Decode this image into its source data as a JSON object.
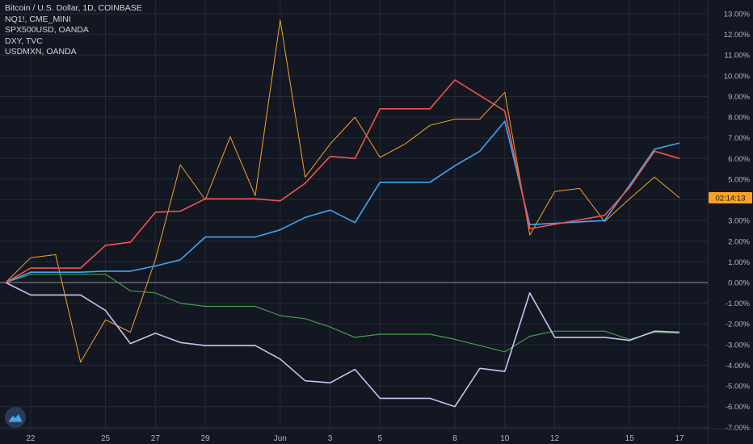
{
  "legend": {
    "line1": "Bitcoin / U.S. Dollar, 1D, COINBASE",
    "line2": "NQ1!, CME_MINI",
    "line3": "SPX500USD, OANDA",
    "line4": "DXY, TVC",
    "line5": "USDMXN, OANDA"
  },
  "price_tag": "02:14:13",
  "colors": {
    "background": "#131722",
    "grid": "#262b37",
    "axis_text": "#b2b5be",
    "btc": "#f7a325",
    "nq": "#f0544f",
    "spx": "#42a5f5",
    "dxy": "#43a047",
    "usdmxn": "#c5c3f0",
    "zero_line": "#8f939c",
    "price_tag_bg": "#f7a325"
  },
  "chart_data": {
    "type": "line",
    "x_ticks": [
      "22",
      "25",
      "27",
      "29",
      "Jun",
      "3",
      "5",
      "8",
      "10",
      "12",
      "15",
      "17"
    ],
    "y_ticks": [
      "13.00%",
      "12.00%",
      "11.00%",
      "10.00%",
      "9.00%",
      "8.00%",
      "7.00%",
      "6.00%",
      "5.00%",
      "4.00%",
      "3.00%",
      "2.00%",
      "1.00%",
      "0.00%",
      "-1.00%",
      "-2.00%",
      "-3.00%",
      "-4.00%",
      "-5.00%",
      "-6.00%",
      "-7.00%"
    ],
    "ylim": [
      -7,
      13
    ],
    "x": [
      "May 21",
      "May 22",
      "May 23",
      "May 24",
      "May 25",
      "May 26",
      "May 27",
      "May 28",
      "May 29",
      "May 30",
      "May 31",
      "Jun 1",
      "Jun 2",
      "Jun 3",
      "Jun 4",
      "Jun 5",
      "Jun 6",
      "Jun 7",
      "Jun 8",
      "Jun 9",
      "Jun 10",
      "Jun 11",
      "Jun 12",
      "Jun 13",
      "Jun 14",
      "Jun 15",
      "Jun 16",
      "Jun 17"
    ],
    "series": [
      {
        "name": "Bitcoin / U.S. Dollar, 1D, COINBASE",
        "color": "#f7a325",
        "x": [
          "May 21",
          "May 22",
          "May 23",
          "May 24",
          "May 25",
          "May 26",
          "May 27",
          "May 28",
          "May 29",
          "May 30",
          "May 31",
          "Jun 1",
          "Jun 2",
          "Jun 3",
          "Jun 4",
          "Jun 5",
          "Jun 6",
          "Jun 7",
          "Jun 8",
          "Jun 9",
          "Jun 10",
          "Jun 11",
          "Jun 12",
          "Jun 13",
          "Jun 14",
          "Jun 15",
          "Jun 16",
          "Jun 17"
        ],
        "values": [
          0.0,
          1.2,
          1.35,
          -3.85,
          -1.8,
          -2.4,
          1.1,
          5.7,
          4.0,
          7.05,
          4.2,
          12.7,
          5.1,
          6.7,
          8.0,
          6.05,
          6.7,
          7.6,
          7.9,
          7.9,
          9.2,
          2.3,
          4.4,
          4.55,
          2.95,
          4.05,
          5.1,
          4.1
        ]
      },
      {
        "name": "NQ1!, CME_MINI",
        "color": "#f0544f",
        "x": [
          "May 21",
          "May 22",
          "May 24",
          "May 25",
          "May 26",
          "May 27",
          "May 28",
          "May 29",
          "May 31",
          "Jun 1",
          "Jun 2",
          "Jun 3",
          "Jun 4",
          "Jun 5",
          "Jun 7",
          "Jun 8",
          "Jun 10",
          "Jun 11",
          "Jun 14",
          "Jun 15",
          "Jun 16",
          "Jun 17"
        ],
        "values": [
          0.0,
          0.7,
          0.7,
          1.8,
          1.95,
          3.4,
          3.45,
          4.05,
          4.05,
          3.95,
          4.8,
          6.1,
          6.0,
          8.4,
          8.4,
          9.8,
          8.3,
          2.6,
          3.25,
          4.6,
          6.35,
          6.0
        ]
      },
      {
        "name": "SPX500USD, OANDA",
        "color": "#42a5f5",
        "x": [
          "May 21",
          "May 22",
          "May 24",
          "May 25",
          "May 26",
          "May 27",
          "May 28",
          "May 29",
          "May 31",
          "Jun 1",
          "Jun 2",
          "Jun 3",
          "Jun 4",
          "Jun 5",
          "Jun 7",
          "Jun 8",
          "Jun 9",
          "Jun 10",
          "Jun 11",
          "Jun 14",
          "Jun 15",
          "Jun 16",
          "Jun 17"
        ],
        "values": [
          0.0,
          0.5,
          0.5,
          0.55,
          0.55,
          0.8,
          1.1,
          2.2,
          2.2,
          2.55,
          3.15,
          3.5,
          2.9,
          4.85,
          4.85,
          5.65,
          6.35,
          7.8,
          2.8,
          3.0,
          4.7,
          6.45,
          6.75
        ]
      },
      {
        "name": "DXY, TVC",
        "color": "#43a047",
        "x": [
          "May 21",
          "May 22",
          "May 24",
          "May 25",
          "May 26",
          "May 27",
          "May 28",
          "May 29",
          "May 31",
          "Jun 1",
          "Jun 2",
          "Jun 3",
          "Jun 4",
          "Jun 5",
          "Jun 7",
          "Jun 8",
          "Jun 9",
          "Jun 10",
          "Jun 11",
          "Jun 12",
          "Jun 14",
          "Jun 15",
          "Jun 16",
          "Jun 17"
        ],
        "values": [
          0.0,
          0.4,
          0.4,
          0.4,
          -0.4,
          -0.5,
          -1.0,
          -1.15,
          -1.15,
          -1.6,
          -1.75,
          -2.15,
          -2.65,
          -2.5,
          -2.5,
          -2.75,
          -3.05,
          -3.35,
          -2.6,
          -2.35,
          -2.35,
          -2.75,
          -2.4,
          -2.45
        ]
      },
      {
        "name": "USDMXN, OANDA",
        "color": "#c5c3f0",
        "x": [
          "May 21",
          "May 22",
          "May 24",
          "May 25",
          "May 26",
          "May 27",
          "May 28",
          "May 29",
          "May 31",
          "Jun 1",
          "Jun 2",
          "Jun 3",
          "Jun 4",
          "Jun 5",
          "Jun 7",
          "Jun 8",
          "Jun 9",
          "Jun 10",
          "Jun 11",
          "Jun 12",
          "Jun 14",
          "Jun 15",
          "Jun 16",
          "Jun 17"
        ],
        "values": [
          0.0,
          -0.6,
          -0.6,
          -1.35,
          -2.95,
          -2.45,
          -2.9,
          -3.05,
          -3.05,
          -3.7,
          -4.75,
          -4.85,
          -4.2,
          -5.6,
          -5.6,
          -6.0,
          -4.15,
          -4.3,
          -0.5,
          -2.65,
          -2.65,
          -2.8,
          -2.35,
          -2.4
        ]
      }
    ]
  }
}
